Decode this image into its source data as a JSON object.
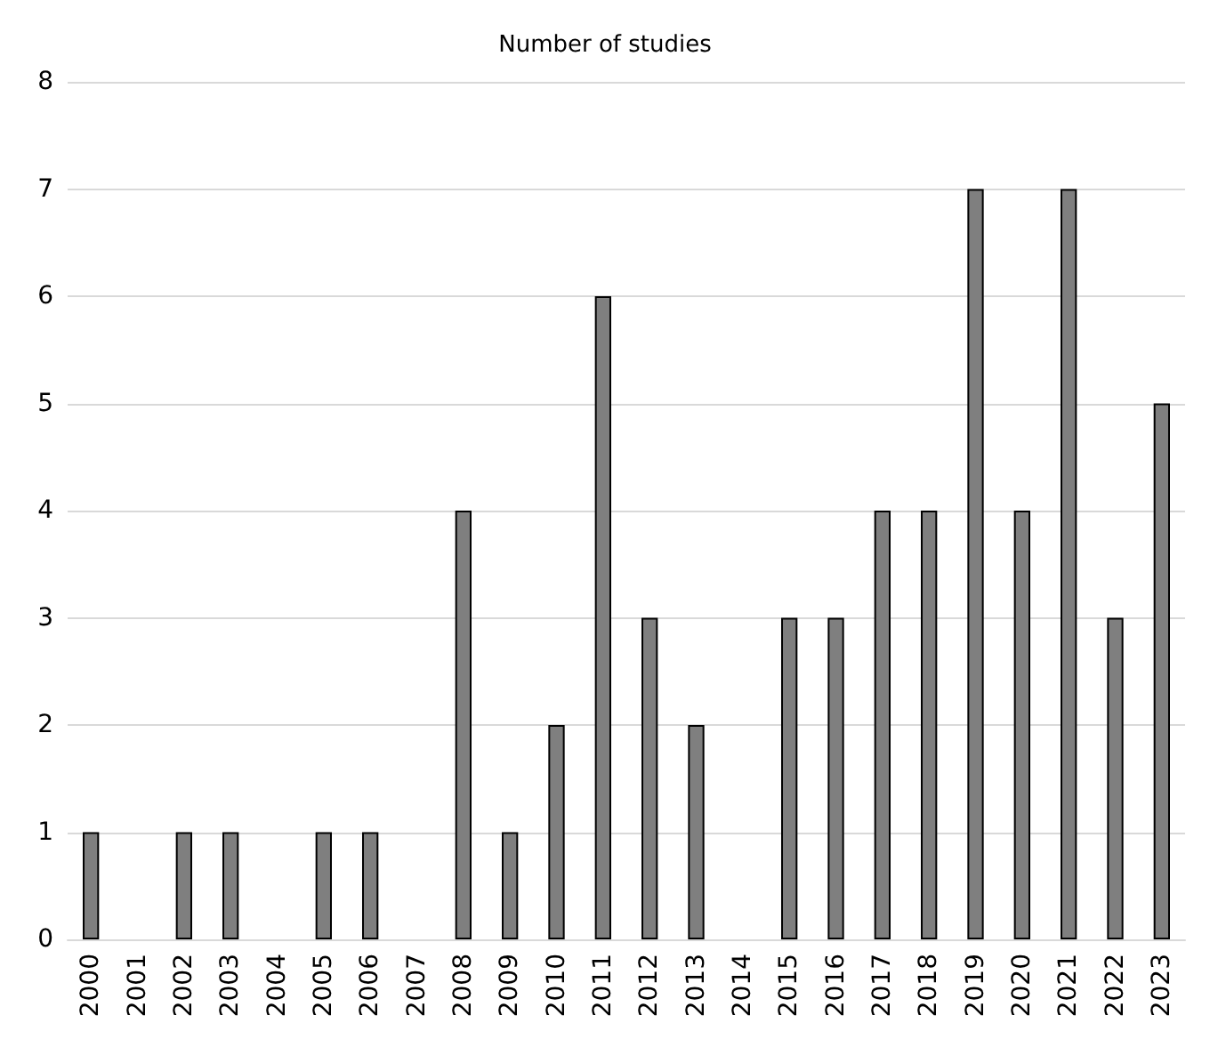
{
  "chart_data": {
    "type": "bar",
    "title": "Number of studies",
    "categories": [
      "2000",
      "2001",
      "2002",
      "2003",
      "2004",
      "2005",
      "2006",
      "2007",
      "2008",
      "2009",
      "2010",
      "2011",
      "2012",
      "2013",
      "2014",
      "2015",
      "2016",
      "2017",
      "2018",
      "2019",
      "2020",
      "2021",
      "2022",
      "2023"
    ],
    "values": [
      1,
      0,
      1,
      1,
      0,
      1,
      1,
      0,
      4,
      1,
      2,
      6,
      3,
      2,
      0,
      3,
      3,
      4,
      4,
      7,
      4,
      7,
      3,
      5
    ],
    "color": "#7f7f7f",
    "ylim": [
      0,
      8
    ],
    "yticks": [
      0,
      1,
      2,
      3,
      4,
      5,
      6,
      7,
      8
    ],
    "grid": "y"
  }
}
